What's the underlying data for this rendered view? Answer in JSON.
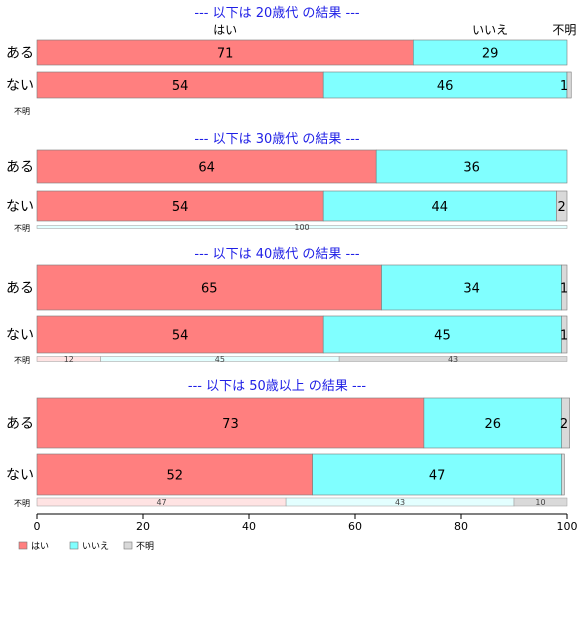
{
  "chart_data": {
    "type": "bar",
    "orientation": "horizontal",
    "stacked": true,
    "xlim": [
      0,
      100
    ],
    "xticks": [
      0,
      20,
      40,
      60,
      80,
      100
    ],
    "series_names": [
      "はい",
      "いいえ",
      "不明"
    ],
    "colors": {
      "yes": "#FF7F7F",
      "no": "#80FFFF",
      "unknown": "#D9D9D9",
      "title": "#1F1FE6"
    },
    "column_labels": [
      "はい",
      "いいえ",
      "不明"
    ],
    "panels": [
      {
        "title": "--- 以下は 20歳代 の結果 ---",
        "rows": [
          {
            "label": "ある",
            "values": [
              71,
              29,
              0
            ],
            "value_labels": [
              "71",
              "29",
              ""
            ]
          },
          {
            "label": "ない",
            "values": [
              54,
              46,
              0.8
            ],
            "value_labels": [
              "54",
              "46",
              "1"
            ]
          },
          {
            "label": "不明",
            "values": [],
            "value_labels": []
          }
        ]
      },
      {
        "title": "--- 以下は 30歳代 の結果 ---",
        "rows": [
          {
            "label": "ある",
            "values": [
              64,
              36,
              0
            ],
            "value_labels": [
              "64",
              "36",
              ""
            ]
          },
          {
            "label": "ない",
            "values": [
              54,
              44,
              2
            ],
            "value_labels": [
              "54",
              "44",
              "2"
            ]
          },
          {
            "label": "不明",
            "values": [
              0,
              100,
              0
            ],
            "value_labels": [
              "",
              "100",
              ""
            ]
          }
        ]
      },
      {
        "title": "--- 以下は 40歳代 の結果 ---",
        "rows": [
          {
            "label": "ある",
            "values": [
              65,
              34,
              1
            ],
            "value_labels": [
              "65",
              "34",
              "1"
            ]
          },
          {
            "label": "ない",
            "values": [
              54,
              45,
              1
            ],
            "value_labels": [
              "54",
              "45",
              "1"
            ]
          },
          {
            "label": "不明",
            "values": [
              12,
              45,
              43
            ],
            "value_labels": [
              "12",
              "45",
              "43"
            ]
          }
        ]
      },
      {
        "title": "--- 以下は 50歳以上 の結果 ---",
        "rows": [
          {
            "label": "ある",
            "values": [
              73,
              26,
              1.5
            ],
            "value_labels": [
              "73",
              "26",
              "2"
            ]
          },
          {
            "label": "ない",
            "values": [
              52,
              47,
              0.5
            ],
            "value_labels": [
              "52",
              "47",
              ""
            ]
          },
          {
            "label": "不明",
            "values": [
              47,
              43,
              10
            ],
            "value_labels": [
              "47",
              "43",
              "10"
            ]
          }
        ]
      }
    ],
    "legend": {
      "position": "bottom-left",
      "items": [
        {
          "label": "はい",
          "color": "#FF7F7F"
        },
        {
          "label": "いいえ",
          "color": "#80FFFF"
        },
        {
          "label": "不明",
          "color": "#D9D9D9"
        }
      ]
    }
  }
}
